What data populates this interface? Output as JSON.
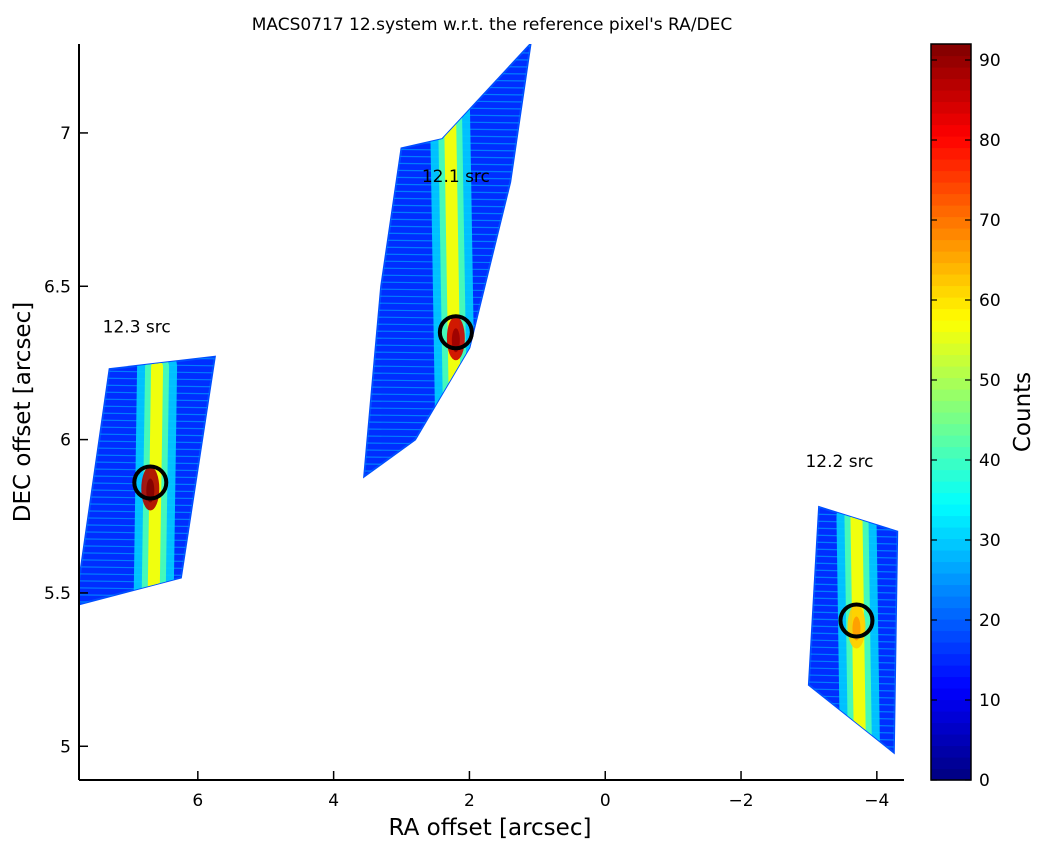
{
  "chart_data": {
    "type": "scatter",
    "title": "MACS0717  12.system w.r.t. the reference pixel's RA/DEC",
    "xlabel": "RA offset [arcsec]",
    "ylabel": "DEC offset [arcsec]",
    "colorbar_label": "Counts",
    "x_reversed": true,
    "xlim": [
      7.75,
      -4.4
    ],
    "ylim": [
      4.89,
      7.29
    ],
    "x_ticks": [
      6,
      4,
      2,
      0,
      -2,
      -4
    ],
    "x_tick_labels": [
      "6",
      "4",
      "2",
      "0",
      "−2",
      "−4"
    ],
    "y_ticks": [
      5,
      5.5,
      6,
      6.5,
      7
    ],
    "y_tick_labels": [
      "5",
      "5.5",
      "6",
      "6.5",
      "7"
    ],
    "colorbar_range": [
      0,
      92
    ],
    "colorbar_ticks": [
      0,
      10,
      20,
      30,
      40,
      50,
      60,
      70,
      80,
      90
    ],
    "colorbar_tick_labels": [
      "0",
      "10",
      "20",
      "30",
      "40",
      "50",
      "60",
      "70",
      "80",
      "90"
    ],
    "colormap": "jet",
    "grid": false,
    "regions": [
      {
        "label": "12.3 src",
        "label_pos": [
          6.9,
          6.35
        ],
        "outline": [
          [
            7.3,
            6.23
          ],
          [
            5.75,
            6.27
          ],
          [
            6.25,
            5.55
          ],
          [
            7.8,
            5.46
          ]
        ],
        "peak_counts": 88,
        "peak_line_x": [
          6.6,
          6.65
        ],
        "circle": [
          6.7,
          5.86
        ]
      },
      {
        "label": "12.1 src",
        "label_pos": [
          2.2,
          6.84
        ],
        "outline": [
          [
            3.0,
            6.95
          ],
          [
            2.4,
            6.98
          ],
          [
            1.1,
            7.29
          ],
          [
            1.4,
            6.84
          ],
          [
            2.0,
            6.3
          ],
          [
            2.8,
            6.0
          ],
          [
            3.55,
            5.88
          ],
          [
            3.3,
            6.5
          ]
        ],
        "peak_counts": 85,
        "peak_line_x": [
          2.3,
          2.2
        ],
        "circle": [
          2.2,
          6.35
        ]
      },
      {
        "label": "12.2 src",
        "label_pos": [
          -3.45,
          5.91
        ],
        "outline": [
          [
            -3.15,
            5.78
          ],
          [
            -4.3,
            5.7
          ],
          [
            -4.25,
            4.98
          ],
          [
            -3.0,
            5.2
          ]
        ],
        "peak_counts": 62,
        "peak_line_x": [
          -3.7,
          -3.75
        ],
        "circle": [
          -3.7,
          5.41
        ]
      }
    ]
  }
}
